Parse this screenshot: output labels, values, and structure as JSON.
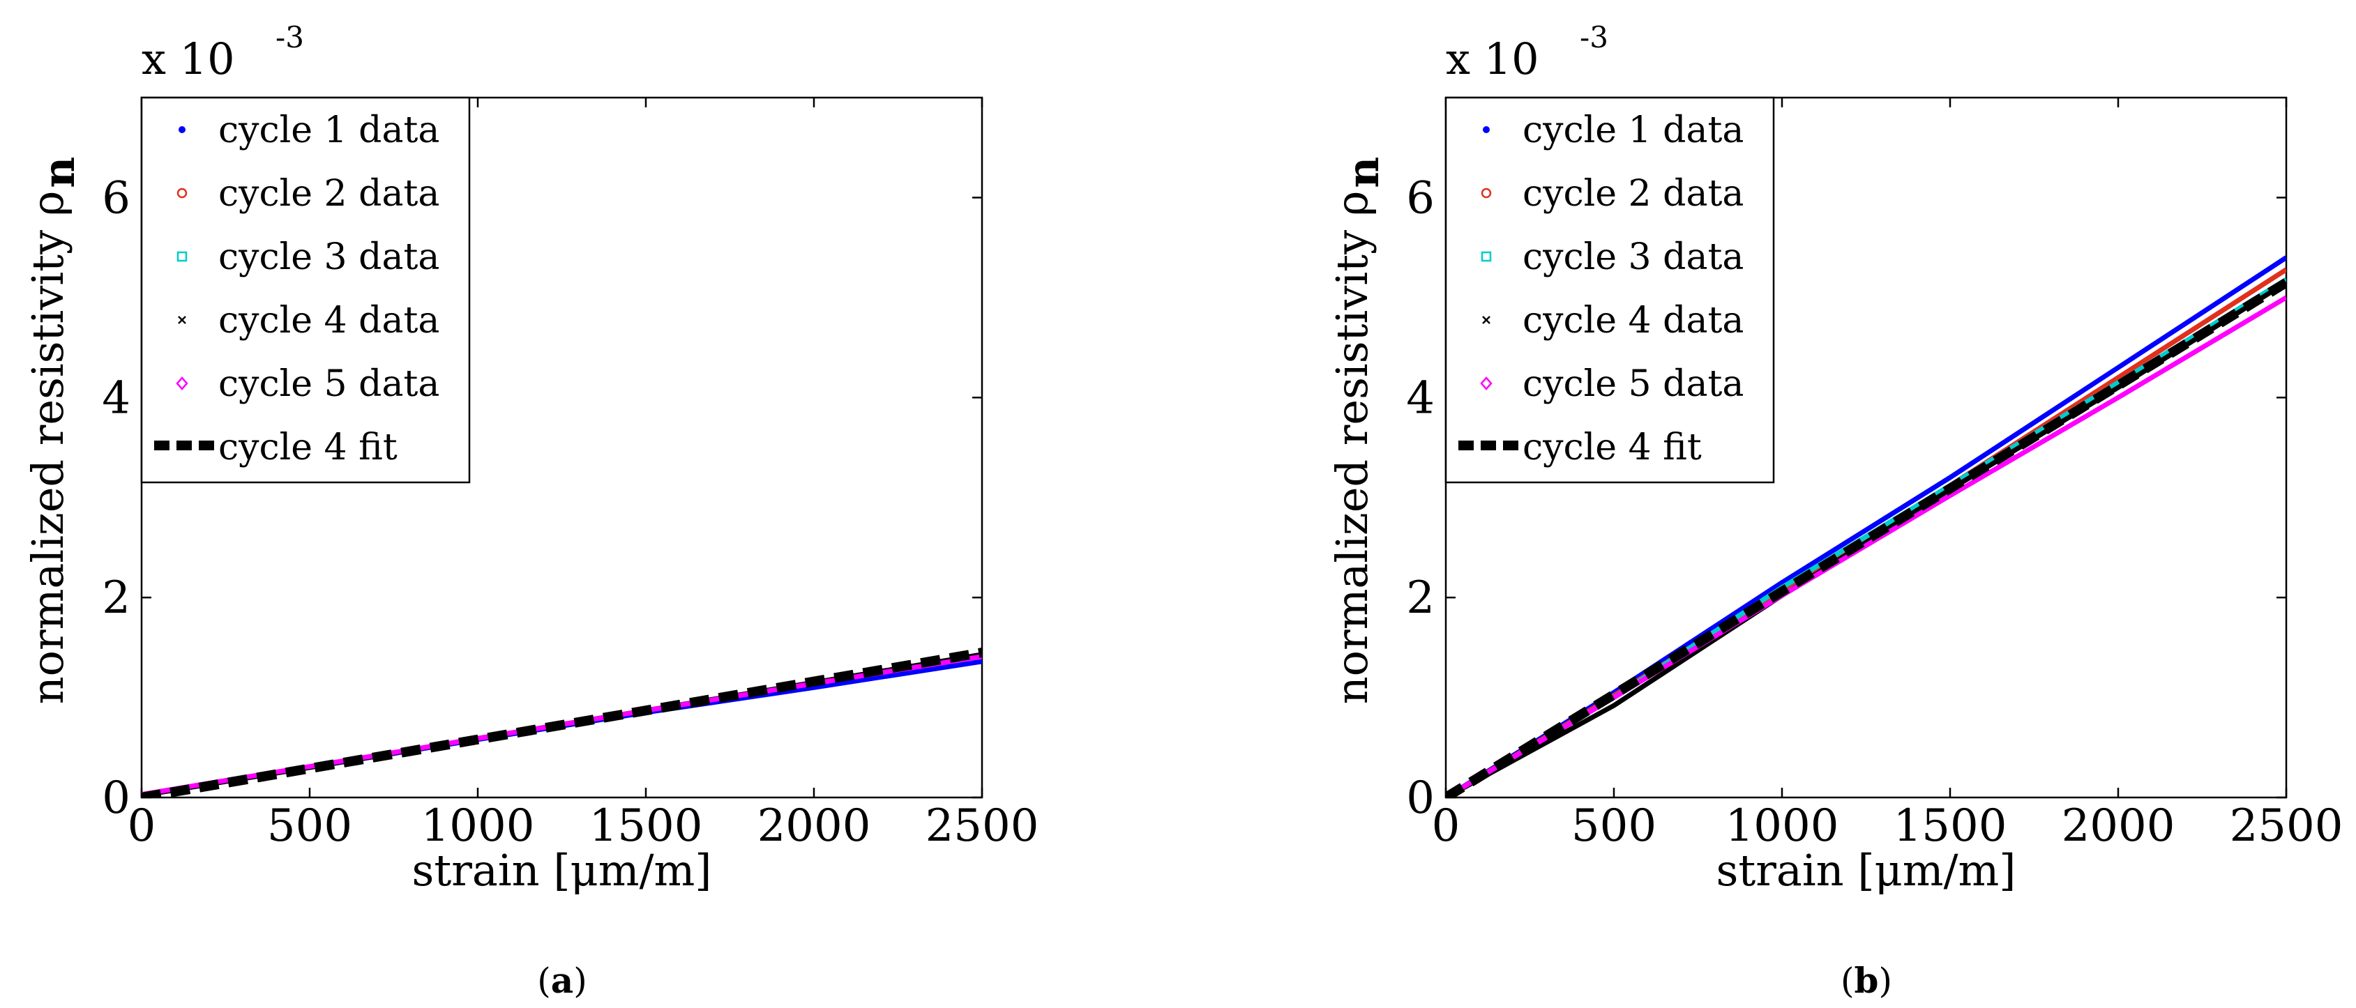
{
  "chart_data": [
    {
      "type": "line",
      "panel": "a",
      "caption_letter": "a",
      "caption_open": "(",
      "caption_close": ")",
      "xlabel": "strain [μm/m]",
      "ylabel": "normalized resistivity ρ",
      "ylabel_subscript": "n",
      "exponent_prefix": "x 10",
      "exponent_power": "-3",
      "xlim": [
        0,
        2500
      ],
      "ylim": [
        0,
        7
      ],
      "xticks": [
        0,
        500,
        1000,
        1500,
        2000,
        2500
      ],
      "xtick_labels": [
        "0",
        "500",
        "1000",
        "1500",
        "2000",
        "2500"
      ],
      "yticks": [
        0,
        2,
        4,
        6
      ],
      "ytick_labels": [
        "0",
        "2",
        "4",
        "6"
      ],
      "y_units_note": "values ×10^-3",
      "legend_position": "top-left",
      "series": [
        {
          "name": "cycle 1 data",
          "color": "#0000ff",
          "marker": "dot",
          "x": [
            0,
            500,
            1000,
            1500,
            2000,
            2500
          ],
          "y": [
            0.02,
            0.3,
            0.58,
            0.85,
            1.1,
            1.36
          ]
        },
        {
          "name": "cycle 2 data",
          "color": "#e0301e",
          "marker": "circle",
          "x": [
            0,
            500,
            1000,
            1500,
            2000,
            2500
          ],
          "y": [
            0.02,
            0.3,
            0.59,
            0.87,
            1.14,
            1.42
          ]
        },
        {
          "name": "cycle 3 data",
          "color": "#00cccc",
          "marker": "square",
          "x": [
            0,
            500,
            1000,
            1500,
            2000,
            2500
          ],
          "y": [
            0.02,
            0.3,
            0.59,
            0.87,
            1.15,
            1.43
          ]
        },
        {
          "name": "cycle 4 data",
          "color": "#000000",
          "marker": "x",
          "x": [
            0,
            500,
            1000,
            1500,
            2000,
            2500
          ],
          "y": [
            0.02,
            0.3,
            0.59,
            0.87,
            1.15,
            1.43
          ]
        },
        {
          "name": "cycle 5 data",
          "color": "#ff00ff",
          "marker": "diamond",
          "x": [
            0,
            500,
            1000,
            1500,
            2000,
            2500
          ],
          "y": [
            0.03,
            0.31,
            0.59,
            0.87,
            1.14,
            1.41
          ]
        },
        {
          "name": "cycle 4 fit",
          "color": "#000000",
          "marker": "dashed",
          "x": [
            0,
            2500
          ],
          "y": [
            0.0,
            1.45
          ]
        }
      ]
    },
    {
      "type": "line",
      "panel": "b",
      "caption_letter": "b",
      "caption_open": "(",
      "caption_close": ")",
      "xlabel": "strain [μm/m]",
      "ylabel": "normalized resistivity ρ",
      "ylabel_subscript": "n",
      "exponent_prefix": "x 10",
      "exponent_power": "-3",
      "xlim": [
        0,
        2500
      ],
      "ylim": [
        0,
        7
      ],
      "xticks": [
        0,
        500,
        1000,
        1500,
        2000,
        2500
      ],
      "xtick_labels": [
        "0",
        "500",
        "1000",
        "1500",
        "2000",
        "2500"
      ],
      "yticks": [
        0,
        2,
        4,
        6
      ],
      "ytick_labels": [
        "0",
        "2",
        "4",
        "6"
      ],
      "y_units_note": "values ×10^-3",
      "legend_position": "top-left",
      "series": [
        {
          "name": "cycle 1 data",
          "color": "#0000ff",
          "marker": "dot",
          "x": [
            0,
            500,
            1000,
            1500,
            2000,
            2500
          ],
          "y": [
            0.0,
            1.05,
            2.15,
            3.2,
            4.3,
            5.4
          ]
        },
        {
          "name": "cycle 2 data",
          "color": "#e0301e",
          "marker": "circle",
          "x": [
            0,
            500,
            1000,
            1500,
            2000,
            2500
          ],
          "y": [
            0.0,
            1.02,
            2.08,
            3.12,
            4.2,
            5.28
          ]
        },
        {
          "name": "cycle 3 data",
          "color": "#00cccc",
          "marker": "square",
          "x": [
            0,
            500,
            1000,
            1500,
            2000,
            2500
          ],
          "y": [
            0.0,
            1.0,
            2.1,
            3.12,
            4.15,
            5.18
          ]
        },
        {
          "name": "cycle 4 data",
          "color": "#000000",
          "marker": "x",
          "x": [
            0,
            500,
            1000,
            1500,
            2000,
            2500
          ],
          "y": [
            0.0,
            0.92,
            2.02,
            3.08,
            4.1,
            5.15
          ]
        },
        {
          "name": "cycle 5 data",
          "color": "#ff00ff",
          "marker": "diamond",
          "x": [
            0,
            500,
            1000,
            1500,
            2000,
            2500
          ],
          "y": [
            0.0,
            1.0,
            2.02,
            3.02,
            4.0,
            5.0
          ]
        },
        {
          "name": "cycle 4 fit",
          "color": "#000000",
          "marker": "dashed",
          "x": [
            0,
            2500
          ],
          "y": [
            0.0,
            5.15
          ]
        }
      ]
    }
  ]
}
